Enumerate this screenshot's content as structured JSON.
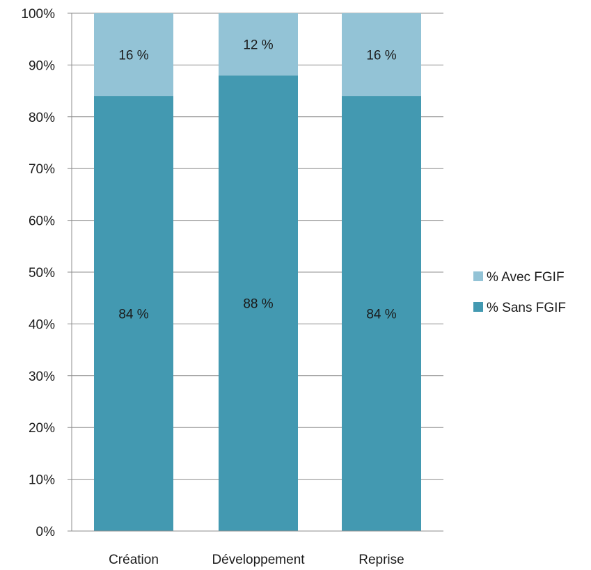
{
  "chart_data": {
    "type": "bar",
    "stacked": true,
    "percent": true,
    "categories": [
      "Création",
      "Développement",
      "Reprise"
    ],
    "series": [
      {
        "name": "% Sans FGIF",
        "values": [
          84,
          88,
          84
        ],
        "labels": [
          "84 %",
          "88 %",
          "84 %"
        ],
        "color": "#4399b1"
      },
      {
        "name": "% Avec FGIF",
        "values": [
          16,
          12,
          16
        ],
        "labels": [
          "16 %",
          "12 %",
          "16 %"
        ],
        "color": "#93c3d6"
      }
    ],
    "yticks": [
      "0%",
      "10%",
      "20%",
      "30%",
      "40%",
      "50%",
      "60%",
      "70%",
      "80%",
      "90%",
      "100%"
    ],
    "ylim": [
      0,
      100
    ],
    "grid": true,
    "legend_position": "right",
    "legend_order": [
      "% Avec FGIF",
      "% Sans FGIF"
    ]
  }
}
